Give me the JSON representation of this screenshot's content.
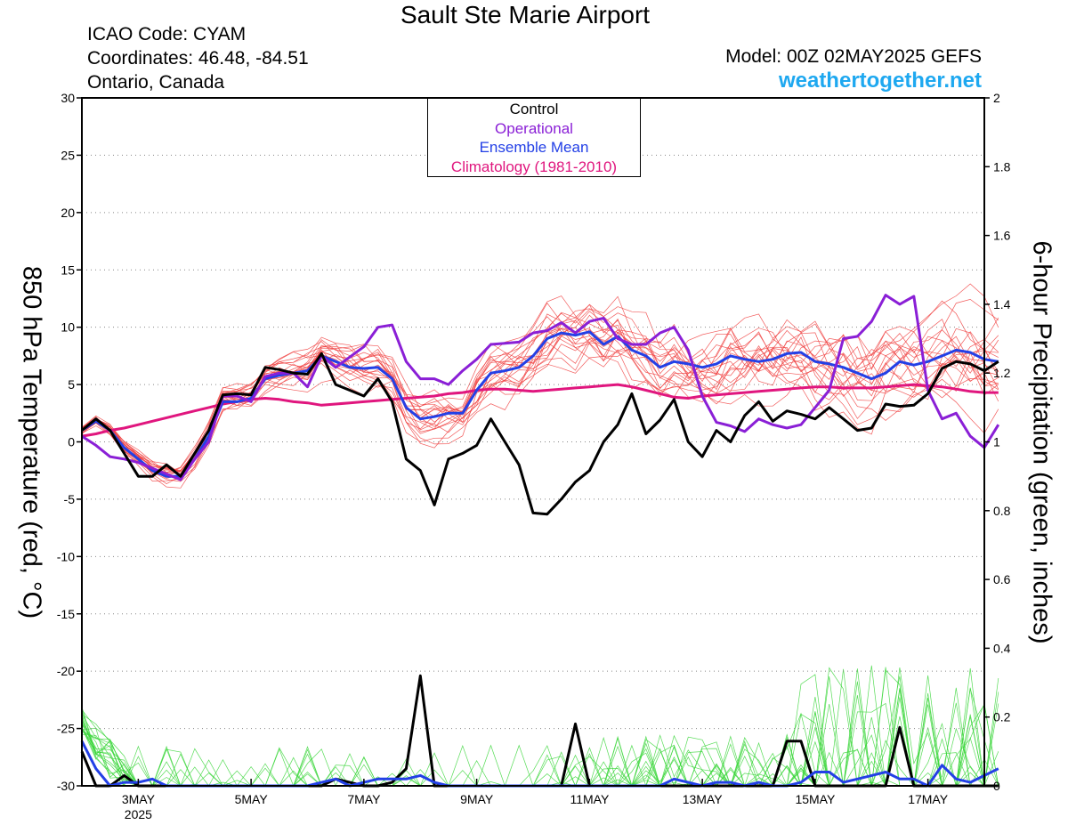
{
  "header": {
    "title": "Sault Ste Marie Airport",
    "icao": "ICAO Code: CYAM",
    "coordinates": "Coordinates: 46.48, -84.51",
    "region": "Ontario, Canada",
    "model": "Model: 00Z 02MAY2025 GEFS",
    "site": "weathertogether.net"
  },
  "legend": {
    "items": [
      {
        "label": "Control",
        "color": "#000000"
      },
      {
        "label": "Operational",
        "color": "#8a1fd6"
      },
      {
        "label": "Ensemble Mean",
        "color": "#2340e6"
      },
      {
        "label": "Climatology (1981-2010)",
        "color": "#e0167e"
      }
    ]
  },
  "chart_data": {
    "type": "line",
    "ylabel": "850 hPa Temperature (red, °C)",
    "y2label": "6-hour Precipitation (green, inches)",
    "ylim": [
      -30,
      30
    ],
    "yticks": [
      30,
      25,
      20,
      15,
      10,
      5,
      0,
      -5,
      -10,
      -15,
      -20,
      -25,
      -30
    ],
    "y2lim": [
      0,
      2
    ],
    "y2ticks": [
      "2",
      "1.8",
      "1.6",
      "1.4",
      "1.2",
      "1",
      "0.8",
      "0.6",
      "0.4",
      "0.2",
      "0"
    ],
    "xlim_days": [
      2.0,
      18.0
    ],
    "xticks": [
      {
        "day": 3,
        "label": "3MAY",
        "sub": "2025"
      },
      {
        "day": 5,
        "label": "5MAY"
      },
      {
        "day": 7,
        "label": "7MAY"
      },
      {
        "day": 9,
        "label": "9MAY"
      },
      {
        "day": 11,
        "label": "11MAY"
      },
      {
        "day": 13,
        "label": "13MAY"
      },
      {
        "day": 15,
        "label": "15MAY"
      },
      {
        "day": 17,
        "label": "17MAY"
      }
    ],
    "step_hours": 6,
    "temperature": {
      "control": [
        1,
        2,
        1,
        -1,
        -3,
        -3,
        -2,
        -3,
        -1,
        1,
        4.1,
        4.2,
        4.1,
        6.5,
        6.3,
        6,
        5.9,
        7.7,
        5,
        4.5,
        4,
        5.5,
        3.5,
        -1.5,
        -2.5,
        -5.5,
        -1.5,
        -1,
        -0.3,
        2,
        0,
        -2,
        -6.2,
        -6.3,
        -5,
        -3.5,
        -2.5,
        0,
        1.5,
        4.2,
        0.7,
        1.9,
        3.7,
        0,
        -1.3,
        1,
        0,
        2.3,
        3.5,
        1.8,
        2.7,
        2.4,
        2,
        3,
        2,
        1,
        1.2,
        3.3,
        3.1,
        3.2,
        4.2,
        6.4,
        7,
        6.8,
        6.2,
        7
      ],
      "operational": [
        0.5,
        -0.3,
        -1.3,
        -1.5,
        -1.8,
        -2.3,
        -2.8,
        -3.3,
        -1.5,
        0,
        4,
        4,
        3.5,
        5.7,
        6,
        6,
        4.8,
        7.5,
        6.5,
        7.4,
        8.3,
        10,
        10.2,
        7,
        5.5,
        5.5,
        5,
        6.2,
        7.2,
        8.5,
        8.6,
        8.7,
        9.5,
        9.7,
        10.4,
        9.5,
        10.5,
        10.8,
        9,
        8.5,
        8.5,
        9.5,
        10,
        8,
        4,
        1.7,
        1.4,
        0.9,
        2,
        1.5,
        1.2,
        1.5,
        3,
        4.5,
        9,
        9.2,
        10.5,
        12.8,
        12,
        12.7,
        4.5,
        2,
        2.5,
        0.5,
        -0.5,
        1.5
      ],
      "mean": [
        1,
        1.8,
        1,
        -0.5,
        -1.5,
        -2.5,
        -3,
        -3,
        -1.5,
        0.5,
        3.5,
        3.5,
        3.8,
        5.5,
        5.8,
        6,
        6.2,
        7.5,
        7,
        6.5,
        6.4,
        6.5,
        5.5,
        3,
        2,
        2.2,
        2.5,
        2.5,
        4.5,
        6,
        6.2,
        6.5,
        7.5,
        9,
        9.5,
        9.3,
        9.6,
        8.5,
        9.2,
        8,
        7.5,
        6.5,
        7,
        6.8,
        6.5,
        6.8,
        7.5,
        7.2,
        7,
        7.2,
        7.7,
        7.8,
        7,
        6.8,
        6.5,
        6,
        5.5,
        6,
        7,
        6.7,
        7,
        7.5,
        8,
        7.8,
        7.2,
        7
      ],
      "climatology": [
        0.5,
        0.7,
        1,
        1.2,
        1.5,
        1.8,
        2.1,
        2.4,
        2.7,
        3,
        3.3,
        3.5,
        3.7,
        3.8,
        3.7,
        3.5,
        3.4,
        3.2,
        3.3,
        3.4,
        3.5,
        3.6,
        3.7,
        3.8,
        3.9,
        4,
        4.2,
        4.3,
        4.5,
        4.6,
        4.6,
        4.5,
        4.4,
        4.5,
        4.6,
        4.7,
        4.8,
        4.9,
        5,
        4.8,
        4.5,
        4.2,
        3.9,
        3.8,
        4,
        4.1,
        4.2,
        4.3,
        4.4,
        4.5,
        4.6,
        4.7,
        4.8,
        4.8,
        4.7,
        4.7,
        4.7,
        4.8,
        4.9,
        5,
        4.9,
        4.8,
        4.6,
        4.4,
        4.3,
        4.3
      ]
    },
    "precipitation": {
      "control": [
        0.1,
        0,
        0,
        0.03,
        0,
        0,
        0,
        0,
        0,
        0,
        0,
        0,
        0,
        0,
        0,
        0,
        0,
        0,
        0.02,
        0.01,
        0,
        0,
        0.01,
        0.05,
        0.32,
        0,
        0,
        0,
        0,
        0,
        0,
        0,
        0,
        0,
        0,
        0.18,
        0,
        0,
        0,
        0,
        0,
        0,
        0,
        0,
        0,
        0,
        0,
        0,
        0,
        0,
        0.13,
        0.13,
        0,
        0,
        0,
        0,
        0,
        0,
        0.17,
        0,
        0,
        0,
        0,
        0,
        0,
        0
      ],
      "mean": [
        0.13,
        0.05,
        0,
        0.01,
        0.01,
        0.02,
        0,
        0,
        0,
        0,
        0,
        0,
        0,
        0,
        0,
        0,
        0,
        0.01,
        0.02,
        0,
        0.01,
        0.02,
        0.02,
        0.02,
        0.03,
        0.01,
        0,
        0,
        0,
        0,
        0,
        0,
        0,
        0,
        0,
        0,
        0,
        0,
        0,
        0,
        0,
        0,
        0.02,
        0.01,
        0,
        0.01,
        0.01,
        0,
        0.01,
        0,
        0,
        0.01,
        0.04,
        0.04,
        0.01,
        0.02,
        0.03,
        0.04,
        0.02,
        0.02,
        0,
        0.06,
        0.02,
        0.01,
        0.03,
        0.05
      ]
    }
  }
}
